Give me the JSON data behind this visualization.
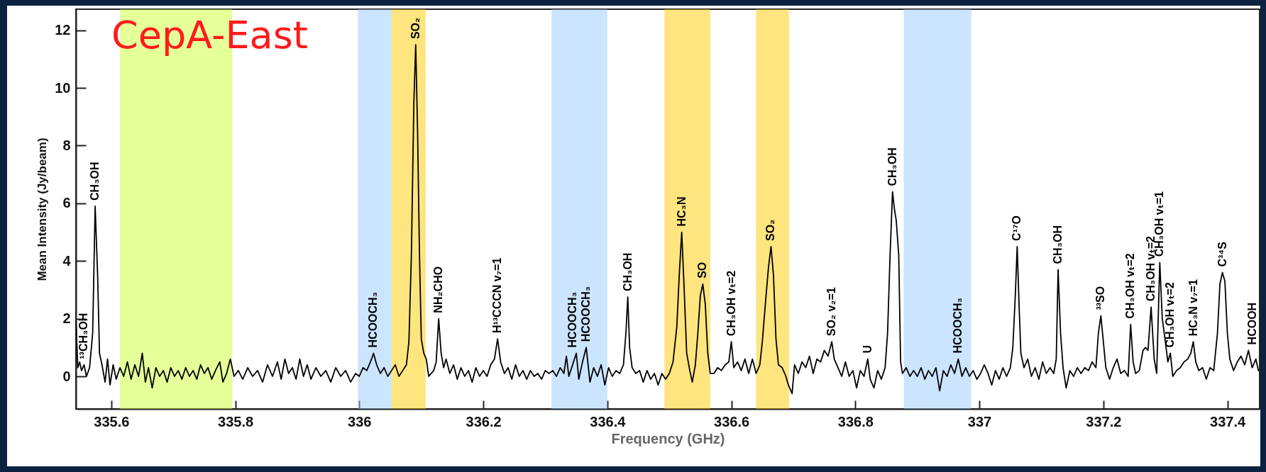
{
  "chart_data": {
    "type": "line",
    "xlabel": "Frequency (GHz)",
    "ylabel": "Mean Intensity (Jy/beam)",
    "xlim": [
      335.543,
      337.452
    ],
    "ylim": [
      -1.13,
      12.73
    ],
    "xticks": [
      335.6,
      335.8,
      336,
      336.2,
      336.4,
      336.6,
      336.8,
      337,
      337.2,
      337.4
    ],
    "yticks": [
      0,
      2,
      4,
      6,
      8,
      10,
      12
    ],
    "grid": false,
    "marker": "none",
    "line_style": "solid",
    "series": [
      {
        "color": "#000000",
        "x": [
          335.543,
          335.546,
          335.549,
          335.552,
          335.556,
          335.56,
          335.565,
          335.57,
          335.574,
          335.578,
          335.581,
          335.585,
          335.59,
          335.594,
          335.598,
          335.603,
          335.608,
          335.614,
          335.62,
          335.626,
          335.632,
          335.638,
          335.644,
          335.65,
          335.655,
          335.66,
          335.666,
          335.672,
          335.678,
          335.684,
          335.69,
          335.696,
          335.702,
          335.708,
          335.714,
          335.72,
          335.726,
          335.732,
          335.738,
          335.744,
          335.75,
          335.756,
          335.762,
          335.768,
          335.775,
          335.78,
          335.786,
          335.792,
          335.798,
          335.805,
          335.812,
          335.82,
          335.828,
          335.836,
          335.844,
          335.852,
          335.86,
          335.868,
          335.874,
          335.88,
          335.886,
          335.892,
          335.898,
          335.904,
          335.91,
          335.916,
          335.922,
          335.93,
          335.938,
          335.946,
          335.954,
          335.962,
          335.97,
          335.978,
          335.986,
          335.994,
          336.0,
          336.006,
          336.012,
          336.018,
          336.023,
          336.028,
          336.034,
          336.04,
          336.046,
          336.052,
          336.058,
          336.064,
          336.07,
          336.076,
          336.08,
          336.084,
          336.088,
          336.091,
          336.094,
          336.097,
          336.1,
          336.104,
          336.108,
          336.112,
          336.116,
          336.12,
          336.124,
          336.128,
          336.132,
          336.136,
          336.14,
          336.146,
          336.152,
          336.158,
          336.164,
          336.17,
          336.176,
          336.182,
          336.188,
          336.194,
          336.2,
          336.206,
          336.212,
          336.218,
          336.223,
          336.228,
          336.234,
          336.24,
          336.246,
          336.252,
          336.258,
          336.264,
          336.27,
          336.276,
          336.282,
          336.288,
          336.294,
          336.3,
          336.306,
          336.312,
          336.318,
          336.324,
          336.33,
          336.334,
          336.338,
          336.344,
          336.35,
          336.354,
          336.36,
          336.366,
          336.372,
          336.378,
          336.384,
          336.39,
          336.396,
          336.402,
          336.408,
          336.414,
          336.42,
          336.426,
          336.43,
          336.433,
          336.436,
          336.44,
          336.446,
          336.452,
          336.458,
          336.464,
          336.47,
          336.476,
          336.482,
          336.488,
          336.494,
          336.5,
          336.506,
          336.512,
          336.516,
          336.52,
          336.524,
          336.528,
          336.533,
          336.537,
          336.542,
          336.546,
          336.55,
          336.554,
          336.558,
          336.562,
          336.566,
          336.572,
          336.578,
          336.584,
          336.59,
          336.596,
          336.6,
          336.604,
          336.61,
          336.616,
          336.622,
          336.628,
          336.634,
          336.64,
          336.646,
          336.65,
          336.656,
          336.66,
          336.664,
          336.668,
          336.672,
          336.676,
          336.682,
          336.688,
          336.692,
          336.698,
          336.702,
          336.708,
          336.714,
          336.72,
          336.726,
          336.732,
          336.738,
          336.744,
          336.75,
          336.756,
          336.762,
          336.766,
          336.772,
          336.778,
          336.784,
          336.79,
          336.796,
          336.802,
          336.808,
          336.814,
          336.82,
          336.824,
          336.83,
          336.836,
          336.842,
          336.848,
          336.852,
          336.856,
          336.86,
          336.863,
          336.866,
          336.87,
          336.873,
          336.876,
          336.882,
          336.888,
          336.894,
          336.9,
          336.906,
          336.912,
          336.918,
          336.924,
          336.93,
          336.936,
          336.942,
          336.948,
          336.954,
          336.96,
          336.966,
          336.972,
          336.978,
          336.984,
          336.99,
          336.996,
          337.002,
          337.008,
          337.014,
          337.02,
          337.026,
          337.032,
          337.038,
          337.044,
          337.05,
          337.054,
          337.058,
          337.061,
          337.064,
          337.067,
          337.072,
          337.078,
          337.084,
          337.09,
          337.096,
          337.102,
          337.108,
          337.114,
          337.12,
          337.124,
          337.127,
          337.131,
          337.135,
          337.14,
          337.146,
          337.152,
          337.158,
          337.164,
          337.17,
          337.176,
          337.182,
          337.188,
          337.192,
          337.196,
          337.2,
          337.204,
          337.21,
          337.216,
          337.222,
          337.228,
          337.234,
          337.24,
          337.244,
          337.248,
          337.252,
          337.258,
          337.264,
          337.268,
          337.272,
          337.277,
          337.282,
          337.286,
          337.291,
          337.295,
          337.3,
          337.304,
          337.308,
          337.312,
          337.318,
          337.324,
          337.33,
          337.336,
          337.341,
          337.345,
          337.349,
          337.354,
          337.36,
          337.366,
          337.372,
          337.378,
          337.384,
          337.388,
          337.392,
          337.396,
          337.4,
          337.404,
          337.41,
          337.416,
          337.422,
          337.428,
          337.434,
          337.44,
          337.446,
          337.45
        ],
        "values": [
          1.9,
          0.3,
          0.5,
          0.2,
          0.4,
          0.0,
          0.3,
          1.5,
          5.9,
          3.5,
          0.8,
          0.4,
          -0.2,
          0.6,
          -0.3,
          0.4,
          -0.1,
          0.3,
          0.0,
          0.5,
          -0.1,
          0.4,
          0.0,
          0.8,
          -0.2,
          0.3,
          -0.4,
          0.3,
          0.0,
          0.2,
          -0.2,
          0.3,
          0.0,
          0.2,
          -0.1,
          0.3,
          0.0,
          0.2,
          -0.1,
          0.4,
          0.1,
          0.3,
          -0.1,
          0.2,
          0.5,
          -0.2,
          0.1,
          0.6,
          0.0,
          0.2,
          -0.1,
          0.3,
          0.0,
          0.2,
          -0.2,
          0.4,
          0.0,
          0.5,
          -0.1,
          0.6,
          0.1,
          0.3,
          -0.1,
          0.6,
          0.0,
          0.4,
          -0.1,
          0.3,
          0.0,
          0.2,
          -0.2,
          0.3,
          0.0,
          0.2,
          -0.2,
          0.1,
          0.0,
          0.3,
          0.2,
          0.5,
          0.8,
          0.4,
          0.1,
          0.3,
          0.0,
          0.2,
          0.4,
          0.0,
          0.2,
          0.4,
          1.2,
          4.2,
          9.5,
          11.5,
          8.5,
          4.3,
          1.3,
          0.8,
          0.6,
          0.0,
          0.1,
          0.2,
          0.5,
          2.0,
          0.8,
          0.3,
          0.6,
          0.1,
          0.4,
          -0.1,
          0.3,
          0.0,
          0.2,
          -0.2,
          0.3,
          0.0,
          0.2,
          0.0,
          0.4,
          0.6,
          1.3,
          0.5,
          0.1,
          0.3,
          -0.1,
          0.4,
          0.0,
          0.2,
          -0.1,
          0.2,
          0.0,
          0.1,
          -0.1,
          0.2,
          0.1,
          0.2,
          0.0,
          0.3,
          0.1,
          0.7,
          0.0,
          0.4,
          0.8,
          -0.1,
          0.5,
          1.0,
          -0.2,
          0.3,
          0.0,
          0.4,
          -0.3,
          0.3,
          0.0,
          0.2,
          0.1,
          0.4,
          1.5,
          2.75,
          1.0,
          0.3,
          0.1,
          0.2,
          -0.2,
          0.2,
          -0.1,
          0.1,
          -0.3,
          0.1,
          -0.1,
          0.1,
          0.5,
          1.7,
          3.5,
          5.0,
          3.0,
          0.8,
          0.2,
          -0.2,
          0.4,
          1.5,
          2.8,
          3.2,
          2.5,
          0.8,
          0.1,
          0.1,
          0.3,
          0.2,
          0.4,
          0.5,
          1.2,
          0.3,
          0.5,
          0.2,
          0.6,
          0.1,
          0.6,
          0.1,
          0.4,
          1.2,
          2.8,
          3.8,
          4.5,
          3.5,
          1.3,
          0.4,
          0.3,
          0.0,
          -0.3,
          -0.6,
          0.4,
          0.1,
          0.5,
          0.3,
          0.7,
          0.1,
          0.6,
          0.5,
          0.9,
          0.7,
          1.2,
          0.6,
          0.3,
          0.0,
          0.5,
          0.0,
          0.2,
          -0.4,
          0.2,
          0.0,
          0.6,
          -0.1,
          -0.4,
          0.2,
          -0.1,
          0.3,
          1.5,
          4.2,
          6.4,
          5.8,
          5.4,
          4.2,
          0.5,
          0.1,
          0.3,
          0.0,
          0.2,
          0.0,
          0.3,
          -0.1,
          0.2,
          0.0,
          0.3,
          -0.5,
          0.2,
          0.0,
          0.4,
          0.1,
          0.6,
          0.0,
          0.3,
          0.0,
          0.2,
          -0.1,
          0.1,
          0.4,
          0.1,
          -0.3,
          0.2,
          -0.1,
          0.3,
          0.0,
          0.3,
          1.0,
          2.8,
          4.5,
          2.5,
          0.8,
          0.3,
          0.6,
          0.0,
          0.3,
          -0.1,
          0.5,
          0.1,
          0.3,
          0.1,
          0.6,
          3.7,
          1.5,
          0.3,
          -0.4,
          0.2,
          0.0,
          0.3,
          0.1,
          0.3,
          0.2,
          0.5,
          0.3,
          1.5,
          2.1,
          1.2,
          0.3,
          -0.1,
          0.3,
          0.6,
          0.1,
          0.2,
          0.0,
          1.8,
          0.5,
          0.1,
          0.2,
          0.9,
          1.0,
          0.9,
          2.4,
          0.6,
          0.1,
          3.95,
          2.0,
          1.2,
          0.5,
          0.8,
          0.0,
          0.2,
          0.3,
          0.5,
          0.6,
          0.8,
          1.2,
          0.5,
          0.2,
          0.3,
          -0.1,
          0.3,
          0.2,
          1.5,
          3.2,
          3.6,
          3.3,
          1.5,
          0.6,
          0.2,
          0.5,
          0.7,
          0.4,
          0.9,
          0.3,
          0.6,
          0.2
        ]
      }
    ],
    "bands": [
      {
        "axis": "x",
        "from": 335.614,
        "to": 335.795,
        "color": "#ccff33"
      },
      {
        "axis": "x",
        "from": 335.998,
        "to": 336.052,
        "color": "#99ccff"
      },
      {
        "axis": "x",
        "from": 336.052,
        "to": 336.107,
        "color": "#ffcc00"
      },
      {
        "axis": "x",
        "from": 336.31,
        "to": 336.4,
        "color": "#99ccff"
      },
      {
        "axis": "x",
        "from": 336.492,
        "to": 336.566,
        "color": "#ffcc00"
      },
      {
        "axis": "x",
        "from": 336.64,
        "to": 336.693,
        "color": "#ffcc00"
      },
      {
        "axis": "x",
        "from": 336.878,
        "to": 336.987,
        "color": "#99ccff"
      }
    ],
    "annotations": [
      "CepA-East",
      {
        "text": "CH₃OH",
        "x": 335.574,
        "y": 5.9
      },
      {
        "text": "¹³CH₃OH",
        "x": 335.556,
        "y": 0.4
      },
      {
        "text": "HCOOCH₃",
        "x": 336.023,
        "y": 0.8
      },
      {
        "text": "SO₂",
        "x": 336.091,
        "y": 11.5
      },
      {
        "text": "NH₂CHO",
        "x": 336.128,
        "y": 2.0
      },
      {
        "text": "H¹³CCCN v₇=1",
        "x": 336.223,
        "y": 1.3
      },
      {
        "text": "HCOOCH₃",
        "x": 336.344,
        "y": 0.4
      },
      {
        "text": "HCOOCH₃",
        "x": 336.366,
        "y": 1.0
      },
      {
        "text": "CH₃OH",
        "x": 336.433,
        "y": 2.75
      },
      {
        "text": "HC₃N",
        "x": 336.52,
        "y": 5.0
      },
      {
        "text": "SO",
        "x": 336.554,
        "y": 3.2
      },
      {
        "text": "CH₃OH vₜ=2",
        "x": 336.6,
        "y": 1.2
      },
      {
        "text": "SO₂",
        "x": 336.664,
        "y": 4.5
      },
      {
        "text": "SO₂ v₂=1",
        "x": 336.762,
        "y": 1.2
      },
      {
        "text": "U",
        "x": 336.82,
        "y": 0.6
      },
      {
        "text": "CH₃OH",
        "x": 336.86,
        "y": 6.4
      },
      {
        "text": "HCOOCH₃",
        "x": 336.966,
        "y": 0.6
      },
      {
        "text": "C¹⁷O",
        "x": 337.061,
        "y": 4.5
      },
      {
        "text": "CH₃OH",
        "x": 337.127,
        "y": 3.7
      },
      {
        "text": "³³SO",
        "x": 337.196,
        "y": 2.1
      },
      {
        "text": "CH₃OH vₜ=2",
        "x": 337.244,
        "y": 1.8
      },
      {
        "text": "CH₃OH vₜ=2",
        "x": 337.277,
        "y": 2.4
      },
      {
        "text": "CH₃OH vₜ=1",
        "x": 337.291,
        "y": 3.95
      },
      {
        "text": "CH₃OH vₜ=2",
        "x": 337.308,
        "y": 0.8
      },
      {
        "text": "HC₃N v₇=1",
        "x": 337.345,
        "y": 1.2
      },
      {
        "text": "C³⁴S",
        "x": 337.392,
        "y": 3.6
      },
      {
        "text": "HCOOH",
        "x": 337.44,
        "y": 0.3
      }
    ]
  }
}
